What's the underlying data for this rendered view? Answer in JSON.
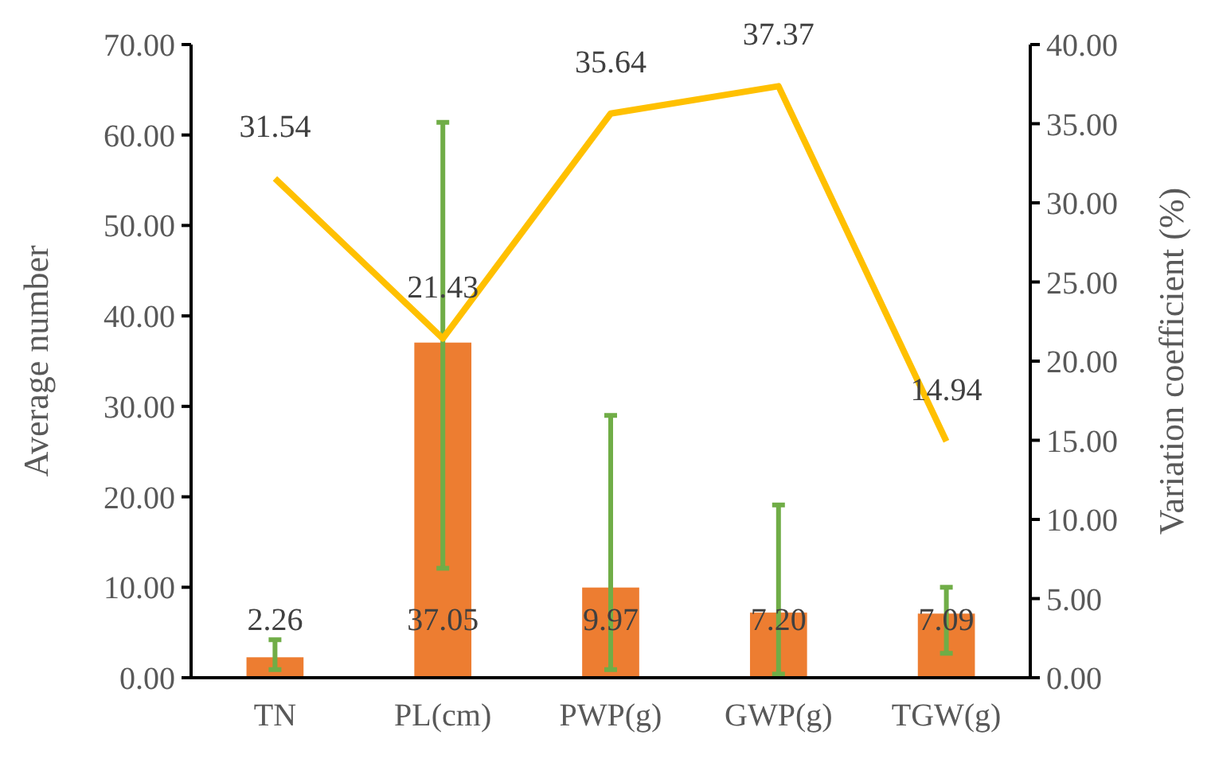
{
  "chart_data": {
    "type": "bar",
    "ylabel": "Average number",
    "y2label": "Variation coefficient (%)",
    "categories": [
      "TN",
      "PL(cm)",
      "PWP(g)",
      "GWP(g)",
      "TGW(g)"
    ],
    "series": [
      {
        "color": "#ed7d31",
        "values": [
          2.26,
          37.05,
          9.97,
          7.2,
          7.09
        ],
        "value_labels": [
          "2.26",
          "37.05",
          "9.97",
          "7.20",
          "7.09"
        ],
        "errors": [
          [
            0.9,
            4.2
          ],
          [
            12.1,
            61.4
          ],
          [
            0.9,
            29.0
          ],
          [
            0.4,
            19.1
          ],
          [
            2.7,
            10.0
          ]
        ]
      },
      {
        "type": "line",
        "axis": "y2",
        "color": "#ffc000",
        "values": [
          31.54,
          21.43,
          35.64,
          37.37,
          14.94
        ],
        "value_labels": [
          "31.54",
          "21.43",
          "35.64",
          "37.37",
          "14.94"
        ]
      }
    ],
    "ylim": [
      0,
      70
    ],
    "yticks": [
      {
        "value": 0,
        "label": "0.00"
      },
      {
        "value": 10,
        "label": "10.00"
      },
      {
        "value": 20,
        "label": "20.00"
      },
      {
        "value": 30,
        "label": "30.00"
      },
      {
        "value": 40,
        "label": "40.00"
      },
      {
        "value": 50,
        "label": "50.00"
      },
      {
        "value": 60,
        "label": "60.00"
      },
      {
        "value": 70,
        "label": "70.00"
      }
    ],
    "y2lim": [
      0,
      40
    ],
    "y2ticks": [
      {
        "value": 0,
        "label": "0.00"
      },
      {
        "value": 5,
        "label": "5.00"
      },
      {
        "value": 10,
        "label": "10.00"
      },
      {
        "value": 15,
        "label": "15.00"
      },
      {
        "value": 20,
        "label": "20.00"
      },
      {
        "value": 25,
        "label": "25.00"
      },
      {
        "value": 30,
        "label": "30.00"
      },
      {
        "value": 35,
        "label": "35.00"
      },
      {
        "value": 40,
        "label": "40.00"
      }
    ],
    "grid": false,
    "marker": "none"
  }
}
